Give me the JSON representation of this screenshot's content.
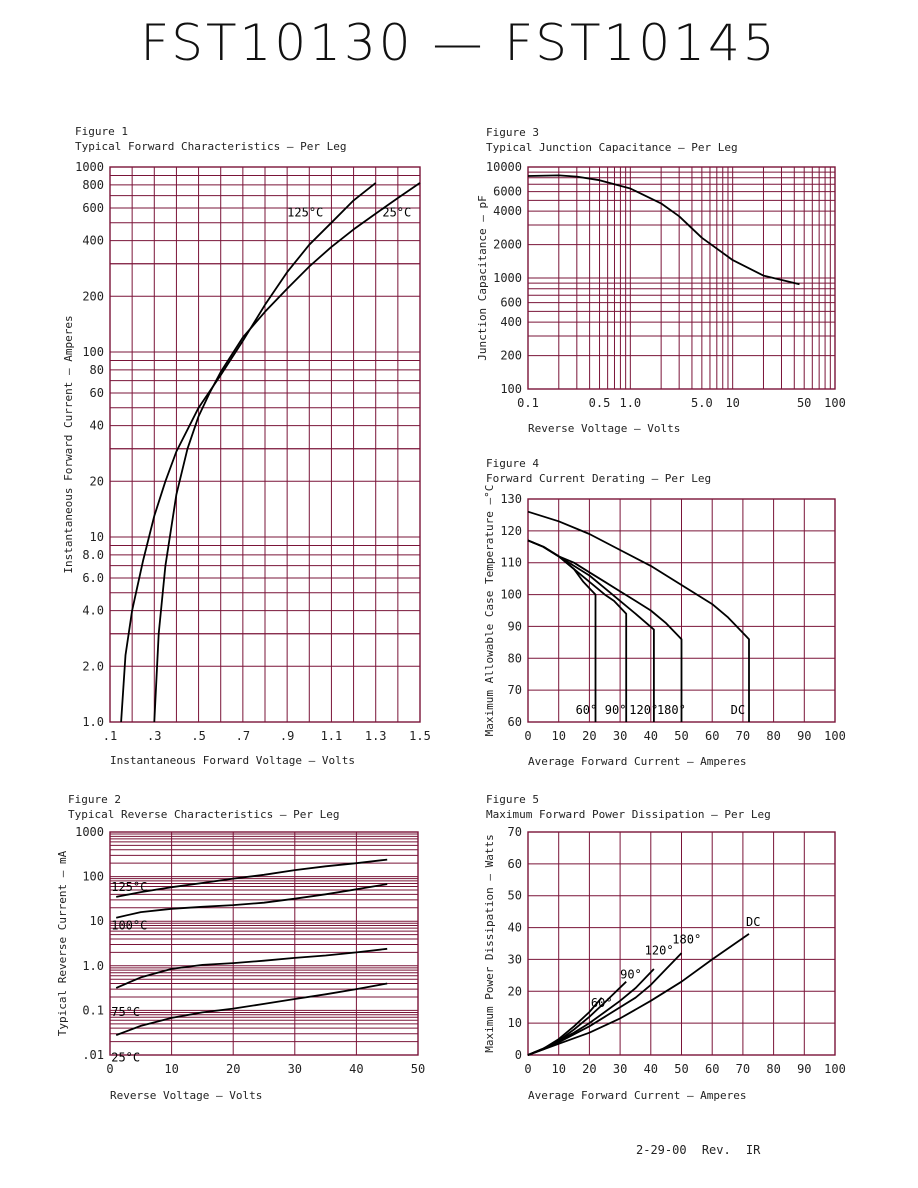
{
  "header": {
    "title": "FST10130  —  FST10145"
  },
  "footer": {
    "date": "2-29-00",
    "rev": "Rev. IR"
  },
  "colors": {
    "grid": "#7a1438",
    "curve": "#000000",
    "label": "#222222"
  },
  "chart_data": [
    {
      "id": "fig1",
      "type": "line",
      "figure_label": "Figure 1",
      "title": "Typical Forward Characteristics — Per Leg",
      "xlabel": "Instantaneous Forward Voltage — Volts",
      "ylabel": "Instantaneous Forward Current — Amperes",
      "xscale": "linear",
      "yscale": "log",
      "xlim": [
        0.1,
        1.5
      ],
      "ylim": [
        1,
        1000
      ],
      "xticks": [
        0.1,
        0.3,
        0.5,
        0.7,
        0.9,
        1.1,
        1.3,
        1.5
      ],
      "xtick_labels": [
        ".1",
        ".3",
        ".5",
        ".7",
        ".9",
        "1.1",
        "1.3",
        "1.5"
      ],
      "yticks": [
        1,
        2,
        4,
        6,
        8,
        10,
        20,
        40,
        60,
        80,
        100,
        200,
        400,
        600,
        800,
        1000
      ],
      "ytick_labels": [
        "1.0",
        "2.0",
        "4.0",
        "6.0",
        "8.0",
        "10",
        "20",
        "40",
        "60",
        "80",
        "100",
        "200",
        "400",
        "600",
        "800",
        "1000"
      ],
      "series": [
        {
          "name": "125°C",
          "label_at": [
            0.9,
            540
          ],
          "x": [
            0.15,
            0.17,
            0.2,
            0.25,
            0.3,
            0.35,
            0.4,
            0.5,
            0.6,
            0.7,
            0.8,
            0.9,
            1.0,
            1.1,
            1.2,
            1.3
          ],
          "y": [
            1.0,
            2.3,
            4.0,
            7.5,
            13,
            20,
            29,
            50,
            75,
            115,
            180,
            270,
            380,
            500,
            660,
            820
          ]
        },
        {
          "name": "25°C",
          "label_at": [
            1.33,
            540
          ],
          "x": [
            0.3,
            0.32,
            0.35,
            0.4,
            0.45,
            0.5,
            0.55,
            0.6,
            0.7,
            0.8,
            0.9,
            1.0,
            1.1,
            1.2,
            1.3,
            1.4,
            1.5
          ],
          "y": [
            1.0,
            3.0,
            7.0,
            17,
            30,
            45,
            60,
            78,
            120,
            165,
            220,
            290,
            370,
            460,
            560,
            680,
            820
          ]
        }
      ]
    },
    {
      "id": "fig2",
      "type": "line",
      "figure_label": "Figure 2",
      "title": "Typical Reverse Characteristics — Per Leg",
      "xlabel": "Reverse Voltage — Volts",
      "ylabel": "Typical Reverse Current — mA",
      "xscale": "linear",
      "yscale": "log",
      "xlim": [
        0,
        50
      ],
      "ylim": [
        0.01,
        1000
      ],
      "xticks": [
        0,
        10,
        20,
        30,
        40,
        50
      ],
      "xtick_labels": [
        "0",
        "10",
        "20",
        "30",
        "40",
        "50"
      ],
      "yticks": [
        0.01,
        0.1,
        1,
        10,
        100,
        1000
      ],
      "ytick_labels": [
        ".01",
        "0.1",
        "1.0",
        "10",
        "100",
        "1000"
      ],
      "series": [
        {
          "name": "125°C",
          "label_at": [
            0.2,
            48
          ],
          "x": [
            1,
            5,
            10,
            15,
            20,
            25,
            30,
            35,
            40,
            45
          ],
          "y": [
            35,
            45,
            58,
            72,
            90,
            110,
            140,
            170,
            200,
            240
          ]
        },
        {
          "name": "100°C",
          "label_at": [
            0.2,
            6.5
          ],
          "x": [
            1,
            5,
            10,
            15,
            20,
            25,
            30,
            35,
            40,
            45
          ],
          "y": [
            12,
            16,
            19,
            21,
            23,
            26,
            32,
            40,
            52,
            68
          ]
        },
        {
          "name": "75°C",
          "label_at": [
            0.2,
            0.075
          ],
          "x": [
            1,
            5,
            10,
            15,
            20,
            25,
            30,
            35,
            40,
            45
          ],
          "y": [
            0.32,
            0.55,
            0.85,
            1.05,
            1.15,
            1.3,
            1.5,
            1.7,
            2.0,
            2.4
          ]
        },
        {
          "name": "25°C",
          "label_at": [
            0.2,
            0.0072
          ],
          "x": [
            1,
            5,
            10,
            15,
            20,
            25,
            30,
            35,
            40,
            45
          ],
          "y": [
            0.028,
            0.045,
            0.068,
            0.09,
            0.11,
            0.14,
            0.18,
            0.23,
            0.3,
            0.4
          ]
        }
      ]
    },
    {
      "id": "fig3",
      "type": "line",
      "figure_label": "Figure 3",
      "title": "Typical Junction Capacitance — Per Leg",
      "xlabel": "Reverse Voltage — Volts",
      "ylabel": "Junction Capacitance — pF",
      "xscale": "log",
      "yscale": "log",
      "xlim": [
        0.1,
        100
      ],
      "ylim": [
        100,
        10000
      ],
      "xticks": [
        0.1,
        0.5,
        1,
        5,
        10,
        50,
        100
      ],
      "xtick_labels": [
        "0.1",
        "0.5",
        "1.0",
        "5.0",
        "10",
        "50",
        "100"
      ],
      "yticks": [
        100,
        200,
        400,
        600,
        1000,
        2000,
        4000,
        6000,
        10000
      ],
      "ytick_labels": [
        "100",
        "200",
        "400",
        "600",
        "1000",
        "2000",
        "4000",
        "6000",
        "10000"
      ],
      "series": [
        {
          "name": "",
          "x": [
            0.1,
            0.2,
            0.3,
            0.5,
            1.0,
            2.0,
            3.0,
            5.0,
            10,
            20,
            45
          ],
          "y": [
            8300,
            8400,
            8200,
            7600,
            6400,
            4700,
            3600,
            2300,
            1450,
            1050,
            880
          ]
        }
      ]
    },
    {
      "id": "fig4",
      "type": "line",
      "figure_label": "Figure 4",
      "title": "Forward Current Derating — Per Leg",
      "xlabel": "Average Forward Current — Amperes",
      "ylabel": "Maximum Allowable Case Temperature —°C",
      "xscale": "linear",
      "yscale": "linear",
      "xlim": [
        0,
        100
      ],
      "ylim": [
        60,
        130
      ],
      "xticks": [
        0,
        10,
        20,
        30,
        40,
        50,
        60,
        70,
        80,
        90,
        100
      ],
      "xtick_labels": [
        "0",
        "10",
        "20",
        "30",
        "40",
        "50",
        "60",
        "70",
        "80",
        "90",
        "100"
      ],
      "yticks": [
        60,
        70,
        80,
        90,
        100,
        110,
        120,
        130
      ],
      "ytick_labels": [
        "60",
        "70",
        "80",
        "90",
        "100",
        "110",
        "120",
        "130"
      ],
      "series": [
        {
          "name": "60°",
          "label_at": [
            15.5,
            62.5
          ],
          "x": [
            0,
            5,
            10,
            15,
            18,
            20,
            22,
            22
          ],
          "y": [
            117,
            115,
            112,
            108,
            104,
            102,
            100,
            60
          ]
        },
        {
          "name": "90°",
          "label_at": [
            25,
            62.5
          ],
          "x": [
            0,
            5,
            10,
            15,
            20,
            25,
            28,
            32,
            32
          ],
          "y": [
            117,
            115,
            112,
            108,
            104,
            100,
            98,
            94,
            60
          ]
        },
        {
          "name": "120°",
          "label_at": [
            33,
            62.5
          ],
          "x": [
            0,
            5,
            10,
            15,
            20,
            25,
            30,
            35,
            41,
            41
          ],
          "y": [
            117,
            115,
            112,
            109,
            106,
            102,
            98,
            94,
            89,
            60
          ]
        },
        {
          "name": "180°",
          "label_at": [
            42,
            62.5
          ],
          "x": [
            0,
            5,
            10,
            15,
            20,
            25,
            30,
            35,
            40,
            45,
            50,
            50
          ],
          "y": [
            117,
            115,
            112,
            110,
            107,
            104,
            101,
            98,
            95,
            91,
            86,
            60
          ]
        },
        {
          "name": "DC",
          "label_at": [
            66,
            62.5
          ],
          "x": [
            0,
            10,
            20,
            30,
            40,
            50,
            60,
            65,
            72,
            72
          ],
          "y": [
            126,
            123,
            119,
            114,
            109,
            103,
            97,
            93,
            86,
            60
          ]
        }
      ]
    },
    {
      "id": "fig5",
      "type": "line",
      "figure_label": "Figure 5",
      "title": "Maximum Forward Power Dissipation — Per Leg",
      "xlabel": "Average Forward Current — Amperes",
      "ylabel": "Maximum Power Dissipation — Watts",
      "xscale": "linear",
      "yscale": "linear",
      "xlim": [
        0,
        100
      ],
      "ylim": [
        0,
        70
      ],
      "xticks": [
        0,
        10,
        20,
        30,
        40,
        50,
        60,
        70,
        80,
        90,
        100
      ],
      "xtick_labels": [
        "0",
        "10",
        "20",
        "30",
        "40",
        "50",
        "60",
        "70",
        "80",
        "90",
        "100"
      ],
      "yticks": [
        0,
        10,
        20,
        30,
        40,
        50,
        60,
        70
      ],
      "ytick_labels": [
        "0",
        "10",
        "20",
        "30",
        "40",
        "50",
        "60",
        "70"
      ],
      "series": [
        {
          "name": "60°",
          "label_at": [
            20.5,
            15
          ],
          "x": [
            0,
            5,
            10,
            15,
            20,
            24
          ],
          "y": [
            0,
            2,
            5,
            9,
            13.5,
            18
          ]
        },
        {
          "name": "90°",
          "label_at": [
            30,
            24
          ],
          "x": [
            0,
            5,
            10,
            15,
            20,
            25,
            32
          ],
          "y": [
            0,
            2,
            4.5,
            8,
            12,
            16.5,
            23
          ]
        },
        {
          "name": "120°",
          "label_at": [
            38,
            31.5
          ],
          "x": [
            0,
            5,
            10,
            15,
            20,
            25,
            30,
            35,
            41
          ],
          "y": [
            0,
            2,
            4.5,
            7,
            10,
            13.5,
            17,
            21,
            27
          ]
        },
        {
          "name": "180°",
          "label_at": [
            47,
            35
          ],
          "x": [
            0,
            5,
            10,
            15,
            20,
            25,
            30,
            35,
            40,
            45,
            50
          ],
          "y": [
            0,
            1.8,
            4,
            6.5,
            9,
            12,
            15,
            18,
            22,
            27,
            32
          ]
        },
        {
          "name": "DC",
          "label_at": [
            71,
            40.5
          ],
          "x": [
            0,
            10,
            20,
            30,
            40,
            50,
            60,
            72
          ],
          "y": [
            0,
            3.5,
            7,
            11.5,
            17,
            23,
            30,
            38
          ]
        }
      ]
    }
  ]
}
